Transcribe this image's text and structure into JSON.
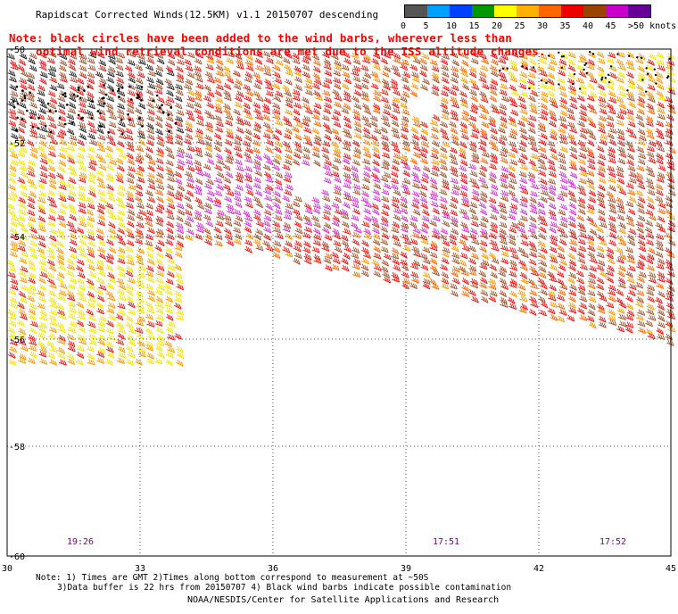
{
  "title": "Rapidscat Corrected Winds(12.5KM) v1.1 20150707 descending",
  "note": {
    "line1": "Note: black circles have been added to the wind barbs, wherever less than",
    "line2": "optimal wind retrieval conditions are met due to the ISS altitude changes."
  },
  "legend": {
    "colors": [
      "#555555",
      "#00a0ff",
      "#0040ff",
      "#009900",
      "#ffff00",
      "#ffb000",
      "#ff6600",
      "#ee0000",
      "#994400",
      "#cc00cc",
      "#660099"
    ],
    "labels": [
      "0",
      "5",
      "10",
      "15",
      "20",
      "25",
      "30",
      "35",
      "40",
      "45",
      ">50 knots"
    ]
  },
  "map": {
    "lon_ticks": [
      "30",
      "33",
      "36",
      "39",
      "42",
      "45"
    ],
    "lat_ticks": [
      "-50",
      "-52",
      "-54",
      "-56",
      "-58",
      "-60"
    ],
    "time_labels": [
      "19:26",
      "17:51",
      "17:52"
    ],
    "time_label_color": "#800080",
    "gridline_style": "dotted"
  },
  "footer": {
    "line1": "Note: 1) Times are GMT 2)Times along bottom correspond to measurement at ~50S",
    "line2": "3)Data buffer is 22 hrs from 20150707 4) Black wind barbs indicate possible contamination",
    "credit": "NOAA/NESDIS/Center for Satellite Applications and Research"
  }
}
